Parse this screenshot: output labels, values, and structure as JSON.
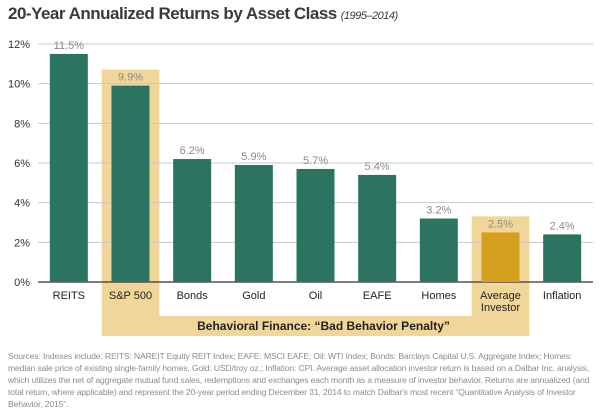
{
  "title": {
    "main": "20-Year Annualized Returns by Asset Class",
    "period": "(1995–2014)"
  },
  "colors": {
    "bar": "#2b7461",
    "highlight_bar": "#d4a01e",
    "penalty_band": "#f1d69a",
    "grid": "#c8c8c8",
    "axis": "#333333"
  },
  "chart_data": {
    "type": "bar",
    "title": "20-Year Annualized Returns by Asset Class",
    "subtitle": "(1995–2014)",
    "categories": [
      "REITS",
      "S&P 500",
      "Bonds",
      "Gold",
      "Oil",
      "EAFE",
      "Homes",
      "Average Investor",
      "Inflation"
    ],
    "category_lines": [
      [
        "REITS"
      ],
      [
        "S&P 500"
      ],
      [
        "Bonds"
      ],
      [
        "Gold"
      ],
      [
        "Oil"
      ],
      [
        "EAFE"
      ],
      [
        "Homes"
      ],
      [
        "Average",
        "Investor"
      ],
      [
        "Inflation"
      ]
    ],
    "values": [
      11.5,
      9.9,
      6.2,
      5.9,
      5.7,
      5.4,
      3.2,
      2.5,
      2.4
    ],
    "value_labels": [
      "11.5%",
      "9.9%",
      "6.2%",
      "5.9%",
      "5.7%",
      "5.4%",
      "3.2%",
      "2.5%",
      "2.4%"
    ],
    "highlight_index": 7,
    "ylim": [
      0,
      12
    ],
    "yticks": [
      0,
      2,
      4,
      6,
      8,
      10,
      12
    ],
    "ytick_labels": [
      "0%",
      "2%",
      "4%",
      "6%",
      "8%",
      "10%",
      "12%"
    ],
    "grid": true,
    "xlabel": "",
    "ylabel": "",
    "annotation": {
      "text": "Behavioral Finance: “Bad Behavior Penalty”",
      "from_category": "S&P 500",
      "to_category": "Average Investor"
    }
  },
  "sources": "Sources: Indexes include: REITS: NAREIT Equity REIT Index; EAFE: MSCI EAFE; Oil: WTI Index; Bonds: Barclays Capital U.S. Aggregate Index; Homes: median sale price of existing single-family homes, Gold: USD/troy oz.; Inflation: CPI. Average asset allocation investor return is based on a Dalbar Inc. analysis, which utilizes the net of aggregate mutual fund sales, redemptions and exchanges each month as a measure of investor behavior. Returns are annualized (and total return, where applicable) and represent the 20-year period ending December 31, 2014 to match Dalbar's most recent “Quantitative Analysis of Investor Behavior, 2015”."
}
